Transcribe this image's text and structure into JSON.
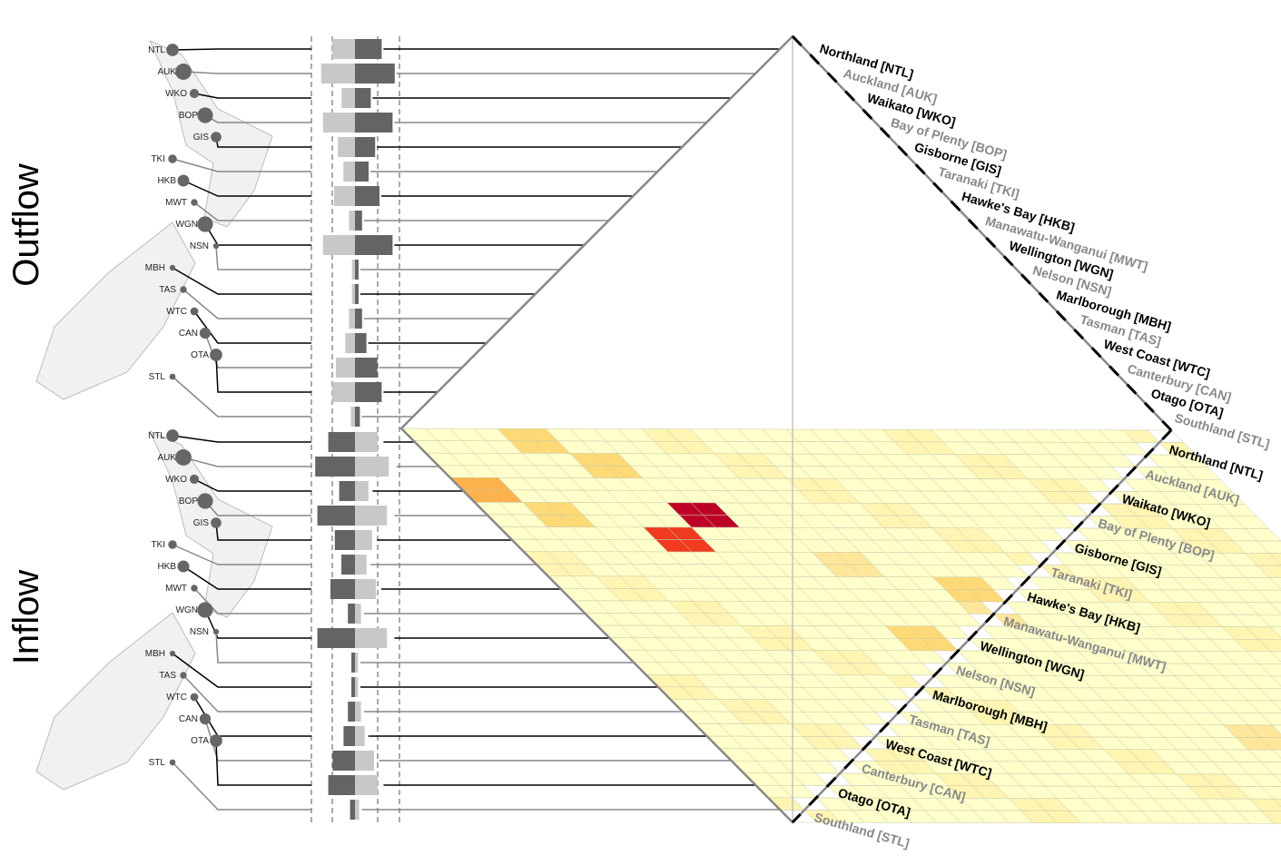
{
  "chart_data": {
    "type": "heatmap",
    "titles": {
      "outflow": "Outflow",
      "inflow": "Inflow"
    },
    "regions": [
      {
        "code": "NTL",
        "label": "Northland [NTL]",
        "out": 0.55,
        "in": 0.55
      },
      {
        "code": "AUK",
        "label": "Auckland [AUK]",
        "out": 0.85,
        "in": 0.85
      },
      {
        "code": "WKO",
        "label": "Waikato [WKO]",
        "out": 0.3,
        "in": 0.3
      },
      {
        "code": "BOP",
        "label": "Bay of Plenty [BOP]",
        "out": 0.8,
        "in": 0.8
      },
      {
        "code": "GIS",
        "label": "Gisborne [GIS]",
        "out": 0.4,
        "in": 0.4
      },
      {
        "code": "TKI",
        "label": "Taranaki [TKI]",
        "out": 0.25,
        "in": 0.25
      },
      {
        "code": "HKB",
        "label": "Hawke's Bay [HKB]",
        "out": 0.5,
        "in": 0.5
      },
      {
        "code": "MWT",
        "label": "Manawatu-Wanganui [MWT]",
        "out": 0.1,
        "in": 0.1
      },
      {
        "code": "WGN",
        "label": "Wellington [WGN]",
        "out": 0.8,
        "in": 0.8
      },
      {
        "code": "NSN",
        "label": "Nelson [NSN]",
        "out": 0.02,
        "in": 0.02
      },
      {
        "code": "MBH",
        "label": "Marlborough [MBH]",
        "out": 0.02,
        "in": 0.02
      },
      {
        "code": "TAS",
        "label": "Tasman [TAS]",
        "out": 0.1,
        "in": 0.1
      },
      {
        "code": "WTC",
        "label": "West Coast [WTC]",
        "out": 0.2,
        "in": 0.2
      },
      {
        "code": "CAN",
        "label": "Canterbury [CAN]",
        "out": 0.45,
        "in": 0.45
      },
      {
        "code": "OTA",
        "label": "Otago [OTA]",
        "out": 0.55,
        "in": 0.55
      },
      {
        "code": "STL",
        "label": "Southland [STL]",
        "out": 0.05,
        "in": 0.05
      }
    ],
    "palette": [
      "#ffffcc",
      "#fff5b3",
      "#fee79a",
      "#fed976",
      "#feb24c",
      "#fd8d3c",
      "#f03b20",
      "#bd0026"
    ],
    "colors": {
      "bar_dark": "#646464",
      "bar_light": "#c8c8c8",
      "line_black": "#000000",
      "line_gray": "#888888"
    }
  }
}
